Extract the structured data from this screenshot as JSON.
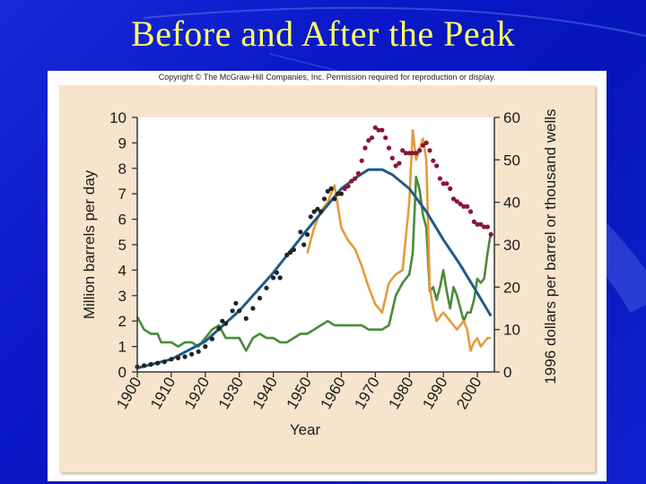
{
  "slide": {
    "title": "Before and After the Peak"
  },
  "figure": {
    "copyright": "Copyright © The McGraw-Hill Companies, Inc. Permission required for reproduction or display."
  },
  "chart_data": {
    "type": "line",
    "title": "",
    "xlabel": "Year",
    "ylabel_left": "Million barrels per day",
    "ylabel_right": "1996 dollars per barrel or thousand wells",
    "xlim": [
      1900,
      2005
    ],
    "ylim_left": [
      0,
      10
    ],
    "ylim_right": [
      0,
      60
    ],
    "x_ticks": [
      1900,
      1910,
      1920,
      1930,
      1940,
      1950,
      1960,
      1970,
      1980,
      1990,
      2000
    ],
    "y_ticks_left": [
      0,
      1,
      2,
      3,
      4,
      5,
      6,
      7,
      8,
      9,
      10
    ],
    "y_ticks_right": [
      0,
      10,
      20,
      30,
      40,
      50,
      60
    ],
    "grid": false,
    "colors": {
      "production_pre_peak": "#222222",
      "production_post_peak": "#8a1538",
      "model_curve": "#1f5a8a",
      "price": "#e39b3c",
      "wells": "#4a8a3a",
      "plot_bg": "#ffffff",
      "panel_bg": "#f7e4cc"
    },
    "series": [
      {
        "axis": "left",
        "style": "dots",
        "color_key": "production_pre_peak",
        "points": [
          [
            1900,
            0.2
          ],
          [
            1902,
            0.25
          ],
          [
            1904,
            0.3
          ],
          [
            1906,
            0.35
          ],
          [
            1908,
            0.4
          ],
          [
            1910,
            0.5
          ],
          [
            1912,
            0.55
          ],
          [
            1914,
            0.6
          ],
          [
            1916,
            0.7
          ],
          [
            1918,
            0.8
          ],
          [
            1920,
            1.0
          ],
          [
            1922,
            1.3
          ],
          [
            1924,
            1.7
          ],
          [
            1925,
            2.0
          ],
          [
            1926,
            1.9
          ],
          [
            1928,
            2.4
          ],
          [
            1929,
            2.7
          ],
          [
            1930,
            2.4
          ],
          [
            1932,
            2.1
          ],
          [
            1934,
            2.5
          ],
          [
            1936,
            2.9
          ],
          [
            1938,
            3.3
          ],
          [
            1940,
            3.7
          ],
          [
            1941,
            3.9
          ],
          [
            1942,
            3.7
          ],
          [
            1944,
            4.6
          ],
          [
            1945,
            4.7
          ],
          [
            1946,
            4.8
          ],
          [
            1948,
            5.5
          ],
          [
            1949,
            5.0
          ],
          [
            1950,
            5.4
          ],
          [
            1951,
            6.1
          ],
          [
            1952,
            6.3
          ],
          [
            1953,
            6.4
          ],
          [
            1954,
            6.3
          ],
          [
            1955,
            6.8
          ],
          [
            1956,
            7.1
          ],
          [
            1957,
            7.2
          ],
          [
            1958,
            6.8
          ],
          [
            1959,
            7.0
          ],
          [
            1960,
            7.0
          ]
        ]
      },
      {
        "axis": "left",
        "style": "dots",
        "color_key": "production_post_peak",
        "points": [
          [
            1961,
            7.2
          ],
          [
            1962,
            7.3
          ],
          [
            1963,
            7.5
          ],
          [
            1964,
            7.6
          ],
          [
            1965,
            7.8
          ],
          [
            1966,
            8.3
          ],
          [
            1967,
            8.8
          ],
          [
            1968,
            9.1
          ],
          [
            1969,
            9.2
          ],
          [
            1970,
            9.6
          ],
          [
            1971,
            9.5
          ],
          [
            1972,
            9.5
          ],
          [
            1973,
            9.2
          ],
          [
            1974,
            8.8
          ],
          [
            1975,
            8.4
          ],
          [
            1976,
            8.1
          ],
          [
            1977,
            8.2
          ],
          [
            1978,
            8.7
          ],
          [
            1979,
            8.6
          ],
          [
            1980,
            8.6
          ],
          [
            1981,
            8.6
          ],
          [
            1982,
            8.6
          ],
          [
            1983,
            8.7
          ],
          [
            1984,
            8.9
          ],
          [
            1985,
            9.0
          ],
          [
            1986,
            8.7
          ],
          [
            1987,
            8.3
          ],
          [
            1988,
            8.1
          ],
          [
            1989,
            7.6
          ],
          [
            1990,
            7.4
          ],
          [
            1991,
            7.4
          ],
          [
            1992,
            7.2
          ],
          [
            1993,
            6.8
          ],
          [
            1994,
            6.7
          ],
          [
            1995,
            6.6
          ],
          [
            1996,
            6.5
          ],
          [
            1997,
            6.5
          ],
          [
            1998,
            6.3
          ],
          [
            1999,
            5.9
          ],
          [
            2000,
            5.8
          ],
          [
            2001,
            5.8
          ],
          [
            2002,
            5.7
          ],
          [
            2003,
            5.7
          ],
          [
            2004,
            5.4
          ]
        ]
      },
      {
        "axis": "left",
        "style": "line",
        "color_key": "model_curve",
        "points": [
          [
            1900,
            0.15
          ],
          [
            1910,
            0.5
          ],
          [
            1920,
            1.2
          ],
          [
            1930,
            2.4
          ],
          [
            1940,
            3.9
          ],
          [
            1950,
            5.6
          ],
          [
            1960,
            7.2
          ],
          [
            1965,
            7.7
          ],
          [
            1968,
            7.95
          ],
          [
            1972,
            7.95
          ],
          [
            1975,
            7.75
          ],
          [
            1980,
            7.2
          ],
          [
            1985,
            6.3
          ],
          [
            1990,
            5.2
          ],
          [
            1995,
            4.2
          ],
          [
            2000,
            3.1
          ],
          [
            2004,
            2.2
          ]
        ]
      },
      {
        "axis": "right",
        "style": "line",
        "color_key": "price",
        "points": [
          [
            1950,
            28
          ],
          [
            1952,
            34
          ],
          [
            1954,
            38
          ],
          [
            1956,
            40
          ],
          [
            1958,
            44
          ],
          [
            1960,
            34
          ],
          [
            1962,
            31
          ],
          [
            1964,
            29
          ],
          [
            1966,
            25
          ],
          [
            1968,
            20
          ],
          [
            1970,
            16
          ],
          [
            1972,
            14
          ],
          [
            1974,
            21
          ],
          [
            1976,
            23
          ],
          [
            1978,
            24
          ],
          [
            1980,
            40
          ],
          [
            1981,
            57
          ],
          [
            1982,
            50
          ],
          [
            1984,
            55
          ],
          [
            1985,
            50
          ],
          [
            1986,
            20
          ],
          [
            1987,
            15
          ],
          [
            1988,
            12
          ],
          [
            1990,
            14
          ],
          [
            1992,
            12
          ],
          [
            1994,
            10
          ],
          [
            1996,
            12
          ],
          [
            1997,
            10
          ],
          [
            1998,
            5
          ],
          [
            1999,
            7
          ],
          [
            2000,
            8
          ],
          [
            2001,
            6
          ],
          [
            2002,
            7
          ],
          [
            2003,
            8
          ],
          [
            2004,
            8
          ]
        ]
      },
      {
        "axis": "right",
        "style": "line",
        "color_key": "wells",
        "points": [
          [
            1900,
            13
          ],
          [
            1902,
            10
          ],
          [
            1904,
            9
          ],
          [
            1906,
            9
          ],
          [
            1907,
            7
          ],
          [
            1910,
            7
          ],
          [
            1912,
            6
          ],
          [
            1914,
            7
          ],
          [
            1916,
            7
          ],
          [
            1918,
            6
          ],
          [
            1920,
            8
          ],
          [
            1922,
            10
          ],
          [
            1924,
            11
          ],
          [
            1926,
            8
          ],
          [
            1928,
            8
          ],
          [
            1930,
            8
          ],
          [
            1932,
            5
          ],
          [
            1934,
            8
          ],
          [
            1936,
            9
          ],
          [
            1938,
            8
          ],
          [
            1940,
            8
          ],
          [
            1942,
            7
          ],
          [
            1944,
            7
          ],
          [
            1946,
            8
          ],
          [
            1948,
            9
          ],
          [
            1950,
            9
          ],
          [
            1952,
            10
          ],
          [
            1954,
            11
          ],
          [
            1956,
            12
          ],
          [
            1958,
            11
          ],
          [
            1960,
            11
          ],
          [
            1962,
            11
          ],
          [
            1964,
            11
          ],
          [
            1966,
            11
          ],
          [
            1968,
            10
          ],
          [
            1970,
            10
          ],
          [
            1972,
            10
          ],
          [
            1974,
            11
          ],
          [
            1976,
            18
          ],
          [
            1978,
            21
          ],
          [
            1980,
            23
          ],
          [
            1981,
            28
          ],
          [
            1982,
            46
          ],
          [
            1983,
            43
          ],
          [
            1984,
            37
          ],
          [
            1985,
            34
          ],
          [
            1986,
            19
          ],
          [
            1987,
            20
          ],
          [
            1988,
            17
          ],
          [
            1989,
            20
          ],
          [
            1990,
            24
          ],
          [
            1991,
            19
          ],
          [
            1992,
            15
          ],
          [
            1993,
            20
          ],
          [
            1994,
            18
          ],
          [
            1995,
            15
          ],
          [
            1996,
            12
          ],
          [
            1997,
            14
          ],
          [
            1998,
            14
          ],
          [
            1999,
            17
          ],
          [
            2000,
            22
          ],
          [
            2001,
            21
          ],
          [
            2002,
            22
          ],
          [
            2003,
            28
          ],
          [
            2004,
            33
          ]
        ]
      }
    ]
  }
}
